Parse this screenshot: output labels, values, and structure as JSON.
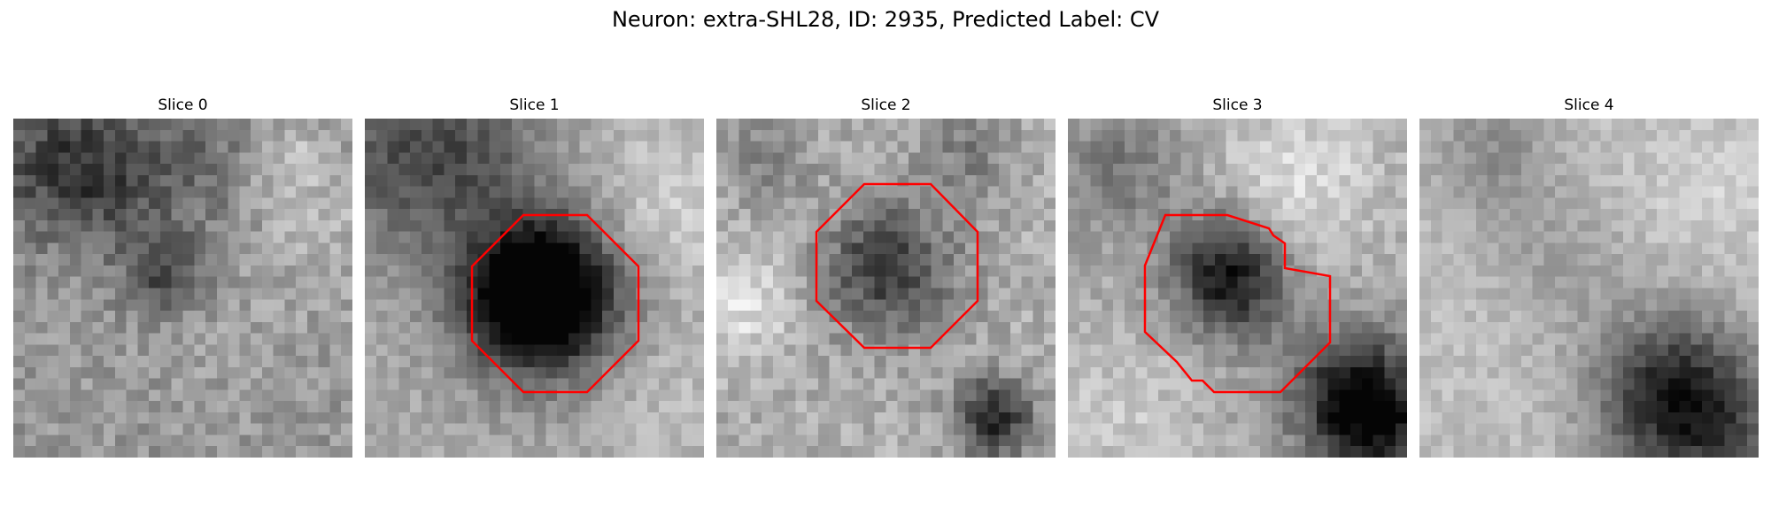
{
  "figure": {
    "title": "Neuron: extra-SHL28, ID: 2935, Predicted Label: CV",
    "outline_color": "#ff0000"
  },
  "panels": [
    {
      "title": "Slice 0",
      "has_outline": false
    },
    {
      "title": "Slice 1",
      "has_outline": true
    },
    {
      "title": "Slice 2",
      "has_outline": true
    },
    {
      "title": "Slice 3",
      "has_outline": true
    },
    {
      "title": "Slice 4",
      "has_outline": false
    }
  ]
}
